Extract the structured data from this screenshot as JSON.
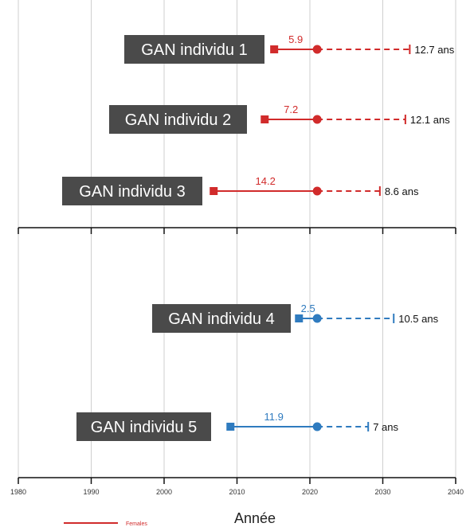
{
  "chart_data": {
    "type": "range-dot",
    "xlabel": "Année",
    "xlim": [
      1980,
      2040
    ],
    "xticks": [
      1980,
      1990,
      2000,
      2010,
      2020,
      2030,
      2040
    ],
    "current_year": 2021,
    "colors": {
      "females": "#d12b2b",
      "males": "#2f7bbf"
    },
    "legend": [
      {
        "label": "Females",
        "color": "#d12b2b"
      }
    ],
    "panels": [
      {
        "items": [
          {
            "label": "GAN individu 1",
            "start": 2015.1,
            "elapsed": "5.9",
            "projected_end": 2033.7,
            "projection": "12.7 ans",
            "group": "females"
          },
          {
            "label": "GAN individu 2",
            "start": 2013.8,
            "elapsed": "7.2",
            "projected_end": 2033.1,
            "projection": "12.1 ans",
            "group": "females"
          },
          {
            "label": "GAN individu 3",
            "start": 2006.8,
            "elapsed": "14.2",
            "projected_end": 2029.6,
            "projection": "8.6 ans",
            "group": "females"
          }
        ]
      },
      {
        "items": [
          {
            "label": "GAN individu 4",
            "start": 2018.5,
            "elapsed": "2.5",
            "projected_end": 2031.5,
            "projection": "10.5  ans",
            "group": "males"
          },
          {
            "label": "GAN individu 5",
            "start": 2009.1,
            "elapsed": "11.9",
            "projected_end": 2028.0,
            "projection": "7 ans",
            "group": "males"
          }
        ]
      }
    ]
  }
}
